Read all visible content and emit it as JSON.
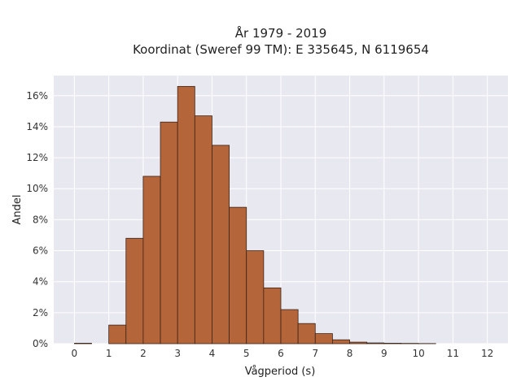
{
  "chart_data": {
    "type": "bar",
    "title": "År 1979 - 2019",
    "subtitle": "Koordinat (Sweref 99 TM): E 335645, N 6119654",
    "xlabel": "Vågperiod (s)",
    "ylabel": "Andel",
    "bin_width": 0.5,
    "bin_starts": [
      0,
      0.5,
      1,
      1.5,
      2,
      2.5,
      3,
      3.5,
      4,
      4.5,
      5,
      5.5,
      6,
      6.5,
      7,
      7.5,
      8,
      8.5,
      9,
      9.5,
      10
    ],
    "values": [
      0.0003,
      0.0,
      0.012,
      0.068,
      0.108,
      0.143,
      0.166,
      0.147,
      0.128,
      0.088,
      0.06,
      0.036,
      0.022,
      0.013,
      0.0065,
      0.0025,
      0.001,
      0.0005,
      0.0003,
      0.0002,
      0.0001
    ],
    "xlim": [
      -0.6,
      12.6
    ],
    "ylim": [
      0,
      0.173
    ],
    "x_ticks": [
      "0",
      "1",
      "2",
      "3",
      "4",
      "5",
      "6",
      "7",
      "8",
      "9",
      "10",
      "11",
      "12"
    ],
    "y_ticks": [
      "0%",
      "2%",
      "4%",
      "6%",
      "8%",
      "10%",
      "12%",
      "14%",
      "16%"
    ],
    "grid": true,
    "colors": {
      "bar_fill": "#b5653a",
      "bar_edge": "#3a2418",
      "plot_bg": "#e8e8f1",
      "grid": "#ffffff"
    }
  }
}
